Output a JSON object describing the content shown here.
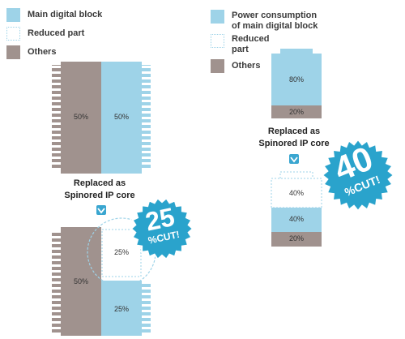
{
  "legend_left": {
    "main": "Main digital block",
    "reduced": "Reduced part",
    "others": "Others"
  },
  "legend_right": {
    "main_line1": "Power consumption",
    "main_line2": "of main digital block",
    "reduced_line1": "Reduced",
    "reduced_line2": "part",
    "others": "Others"
  },
  "chip_top": {
    "others_pct": "50%",
    "main_pct": "50%"
  },
  "chip_bottom": {
    "others_pct": "50%",
    "reduced_pct": "25%",
    "main_pct": "25%"
  },
  "battery_top": {
    "main_pct": "80%",
    "others_pct": "20%"
  },
  "battery_bottom": {
    "reduced_pct": "40%",
    "main_pct": "40%",
    "others_pct": "20%"
  },
  "replaced_left": {
    "line1": "Replaced as",
    "line2": "Spinored IP core"
  },
  "replaced_right": {
    "line1": "Replaced as",
    "line2": "Spinored IP core"
  },
  "badge_left": {
    "number": "25",
    "text": "%CUT!"
  },
  "badge_right": {
    "number": "40",
    "text": "%CUT!"
  },
  "colors": {
    "main": "#9ed3e8",
    "others": "#a0928e",
    "badge": "#2aa3cc",
    "arrow": "#3aa6d0"
  },
  "icons": {
    "arrow": "down-arrow-icon"
  }
}
